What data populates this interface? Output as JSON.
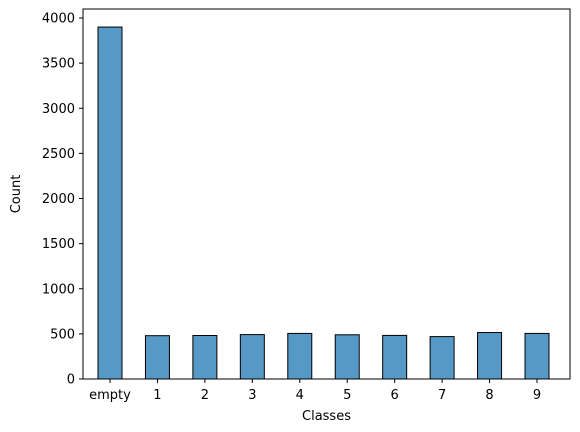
{
  "chart_data": {
    "type": "bar",
    "categories": [
      "empty",
      "1",
      "2",
      "3",
      "4",
      "5",
      "6",
      "7",
      "8",
      "9"
    ],
    "values": [
      3900,
      480,
      482,
      492,
      505,
      490,
      483,
      470,
      515,
      505
    ],
    "title": "",
    "xlabel": "Classes",
    "ylabel": "Count",
    "ylim": [
      0,
      4100
    ],
    "yticks": [
      0,
      500,
      1000,
      1500,
      2000,
      2500,
      3000,
      3500,
      4000
    ],
    "grid": false,
    "bar_color": "#5799c6",
    "edge_color": "#000000"
  }
}
